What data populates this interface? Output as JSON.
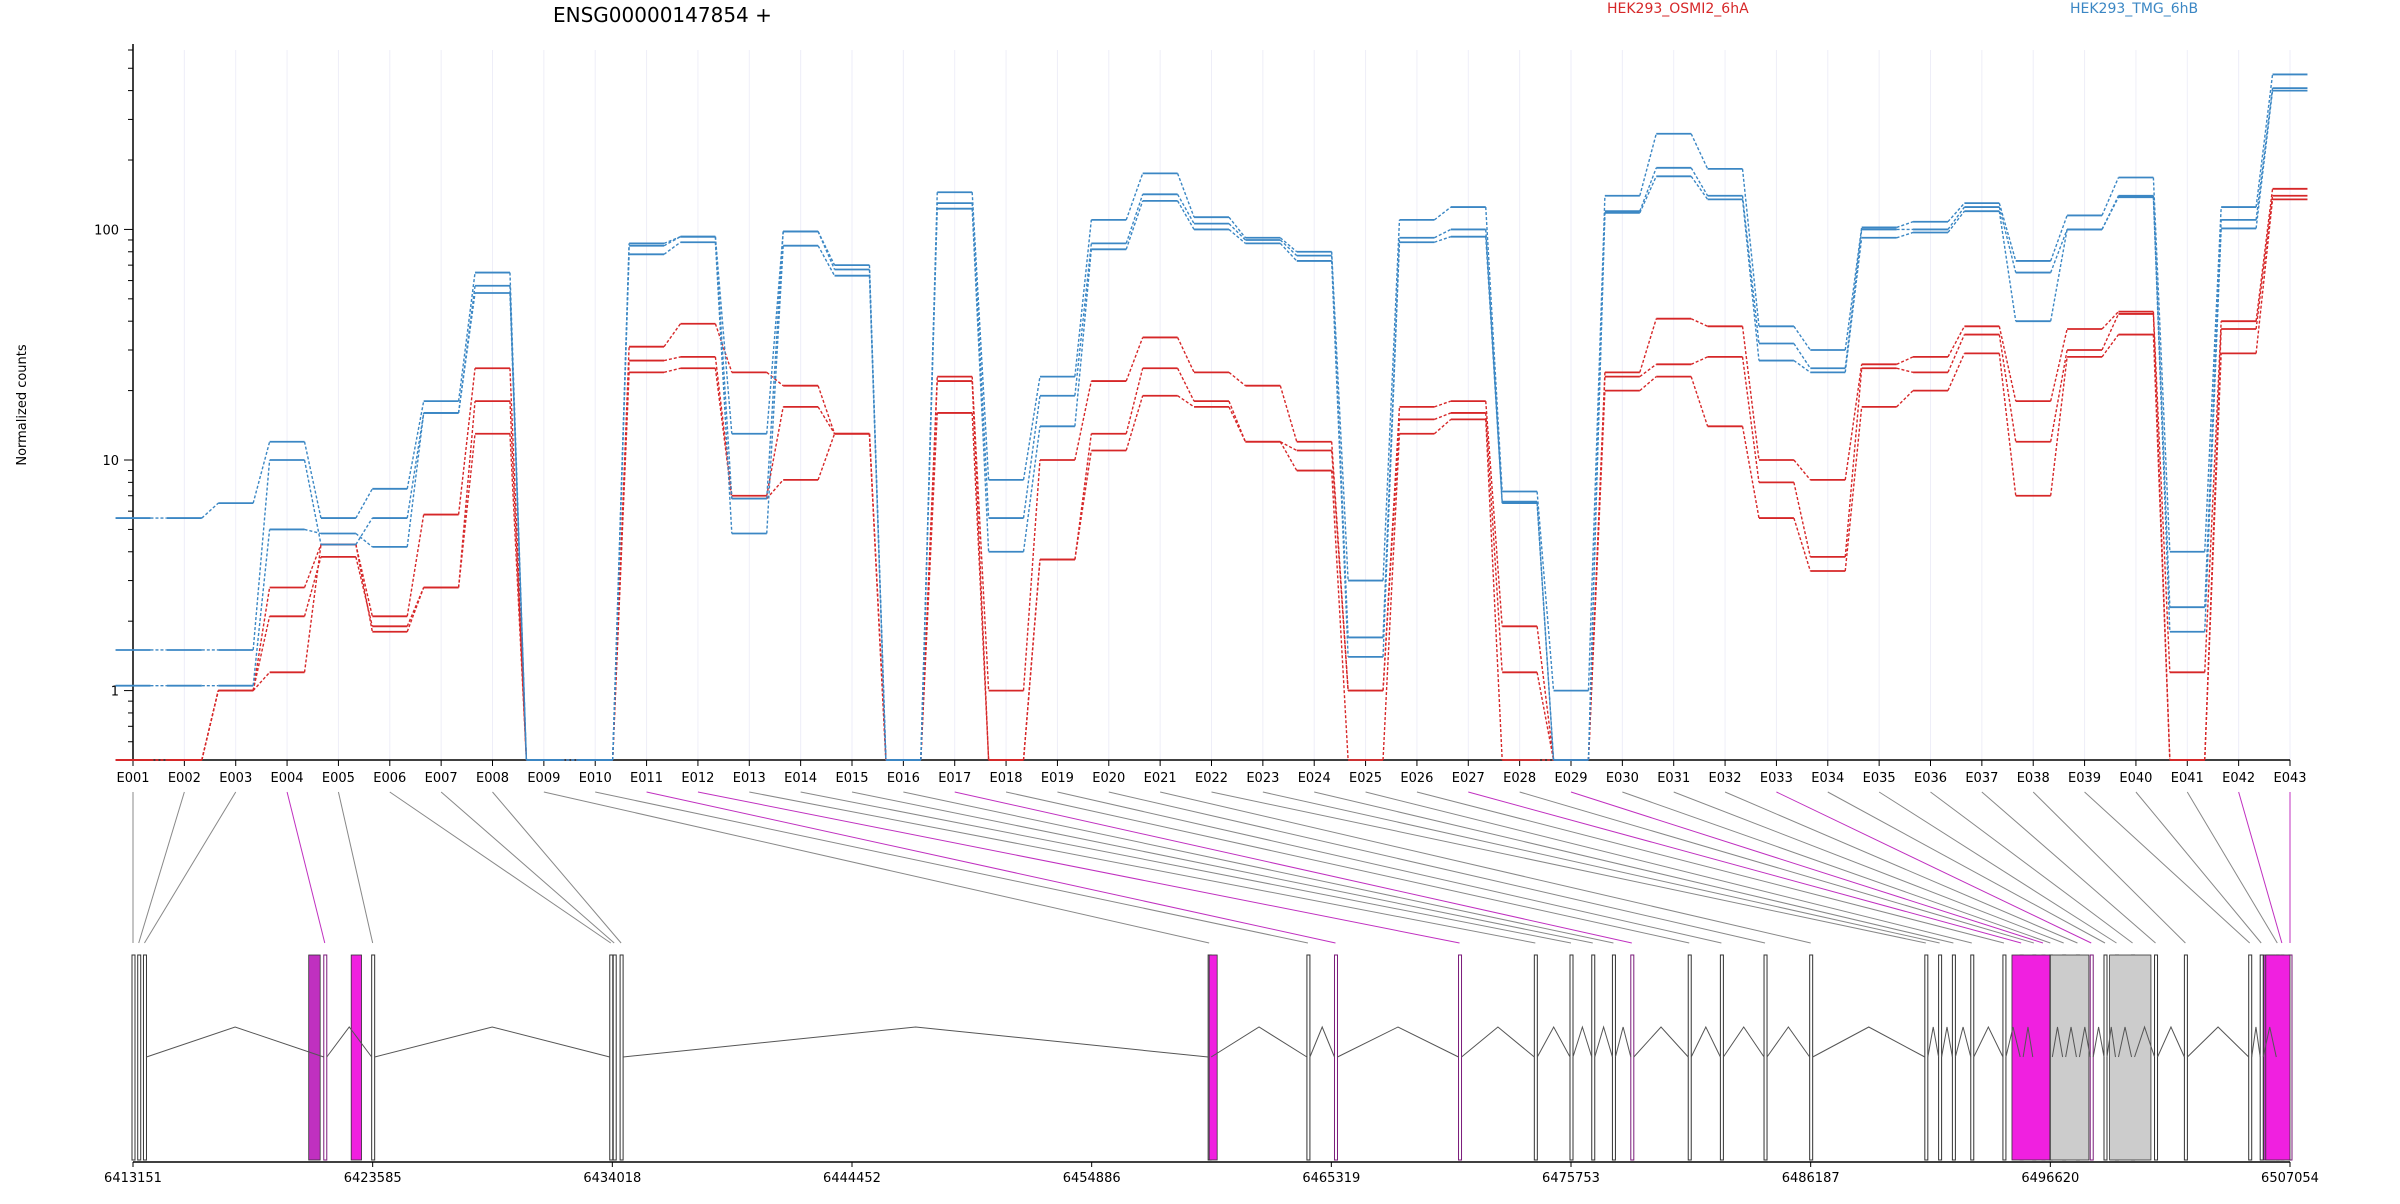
{
  "chart_data": {
    "type": "line",
    "title": "ENSG00000147854 +",
    "ylabel": "Normalized counts",
    "xlabel": "",
    "yscale": "log",
    "ylim": [
      0.5,
      600
    ],
    "yticks": [
      "1",
      "10",
      "100"
    ],
    "grid": true,
    "legend_position": "top",
    "categories": [
      "E001",
      "E002",
      "E003",
      "E004",
      "E005",
      "E006",
      "E007",
      "E008",
      "E009",
      "E010",
      "E011",
      "E012",
      "E013",
      "E014",
      "E015",
      "E016",
      "E017",
      "E018",
      "E019",
      "E020",
      "E021",
      "E022",
      "E023",
      "E024",
      "E025",
      "E026",
      "E027",
      "E028",
      "E029",
      "E030",
      "E031",
      "E032",
      "E033",
      "E034",
      "E035",
      "E036",
      "E037",
      "E038",
      "E039",
      "E040",
      "E041",
      "E042",
      "E043"
    ],
    "legend": [
      {
        "name": "HEK293_OSMI2_6hA",
        "color": "#d62728"
      },
      {
        "name": "HEK293_TMG_6hB",
        "color": "#3b87c4"
      }
    ],
    "series": [
      {
        "name": "HEK293_OSMI2_6hA",
        "color": "#d62728",
        "values": [
          0.5,
          0.5,
          1,
          2.8,
          4.3,
          2.1,
          5.8,
          25,
          0.5,
          0.5,
          31,
          39,
          24,
          21,
          13,
          0.5,
          23,
          1,
          10,
          22,
          34,
          24,
          21,
          12,
          1,
          17,
          18,
          1.9,
          0.5,
          24,
          41,
          38,
          10,
          8.2,
          26,
          28,
          38,
          18,
          37,
          44,
          1.2,
          40,
          150
        ]
      },
      {
        "name": "HEK293_OSMI2_6hA",
        "color": "#d62728",
        "values": [
          0.5,
          0.5,
          1,
          2.1,
          3.8,
          1.9,
          2.8,
          18,
          0.5,
          0.5,
          27,
          28,
          7,
          17,
          13,
          0.5,
          22,
          0.5,
          3.7,
          13,
          25,
          18,
          12,
          11,
          1,
          15,
          16,
          1.2,
          0.5,
          23,
          26,
          28,
          8,
          3.8,
          25,
          24,
          35,
          12,
          30,
          43,
          0.5,
          37,
          140
        ]
      },
      {
        "name": "HEK293_OSMI2_6hA",
        "color": "#d62728",
        "values": [
          0.5,
          0.5,
          1,
          1.2,
          4.3,
          1.8,
          2.8,
          13,
          0.5,
          0.5,
          24,
          25,
          6.8,
          8.2,
          13,
          0.5,
          16,
          0.5,
          3.7,
          11,
          19,
          17,
          12,
          9,
          0.5,
          13,
          15,
          0.5,
          0.5,
          20,
          23,
          14,
          5.6,
          3.3,
          17,
          20,
          29,
          7,
          28,
          35,
          0.5,
          29,
          135
        ]
      },
      {
        "name": "HEK293_TMG_6hB",
        "color": "#3b87c4",
        "values": [
          5.6,
          5.6,
          6.5,
          12,
          5.6,
          7.5,
          18,
          65,
          0.5,
          0.5,
          87,
          93,
          13,
          98,
          70,
          0.5,
          145,
          8.2,
          23,
          110,
          175,
          113,
          92,
          80,
          3,
          110,
          125,
          7.3,
          1,
          140,
          260,
          183,
          38,
          30,
          102,
          108,
          130,
          73,
          115,
          168,
          4,
          125,
          470
        ]
      },
      {
        "name": "HEK293_TMG_6hB",
        "color": "#3b87c4",
        "values": [
          1.5,
          1.5,
          1.5,
          10,
          4.3,
          5.6,
          16,
          57,
          0.5,
          0.5,
          85,
          93,
          6.8,
          98,
          67,
          0.5,
          130,
          5.6,
          19,
          87,
          142,
          106,
          90,
          77,
          1.7,
          92,
          100,
          6.6,
          0.5,
          120,
          185,
          140,
          32,
          25,
          100,
          100,
          125,
          65,
          100,
          140,
          2.3,
          110,
          410
        ]
      },
      {
        "name": "HEK293_TMG_6hB",
        "color": "#3b87c4",
        "values": [
          1.05,
          1.05,
          1.05,
          5,
          4.8,
          4.2,
          16,
          53,
          0.5,
          0.5,
          78,
          88,
          4.8,
          85,
          63,
          0.5,
          123,
          4,
          14,
          82,
          133,
          100,
          87,
          73,
          1.4,
          88,
          93,
          6.5,
          0.5,
          118,
          170,
          135,
          27,
          24,
          92,
          97,
          120,
          40,
          100,
          138,
          1.8,
          101,
          400
        ]
      }
    ],
    "gene_model": {
      "coordinates": [
        "6413151",
        "6423585",
        "6434018",
        "6444452",
        "6454886",
        "6465319",
        "6475753",
        "6486187",
        "6496620",
        "6507054"
      ],
      "exon_status": [
        "gray",
        "gray",
        "gray",
        "purple",
        "gray",
        "gray",
        "gray",
        "gray",
        "gray",
        "gray",
        "purple",
        "purple",
        "gray",
        "gray",
        "gray",
        "gray",
        "purple",
        "gray",
        "gray",
        "gray",
        "gray",
        "gray",
        "gray",
        "gray",
        "gray",
        "gray",
        "purple",
        "gray",
        "purple",
        "gray",
        "gray",
        "gray",
        "purple",
        "gray",
        "gray",
        "gray",
        "gray",
        "gray",
        "gray",
        "gray",
        "gray",
        "purple",
        "purple"
      ],
      "colors": {
        "gray": "#888888",
        "purple": "#c030c0",
        "highlight": "#f020e0",
        "fill": "#cccccc"
      }
    }
  }
}
